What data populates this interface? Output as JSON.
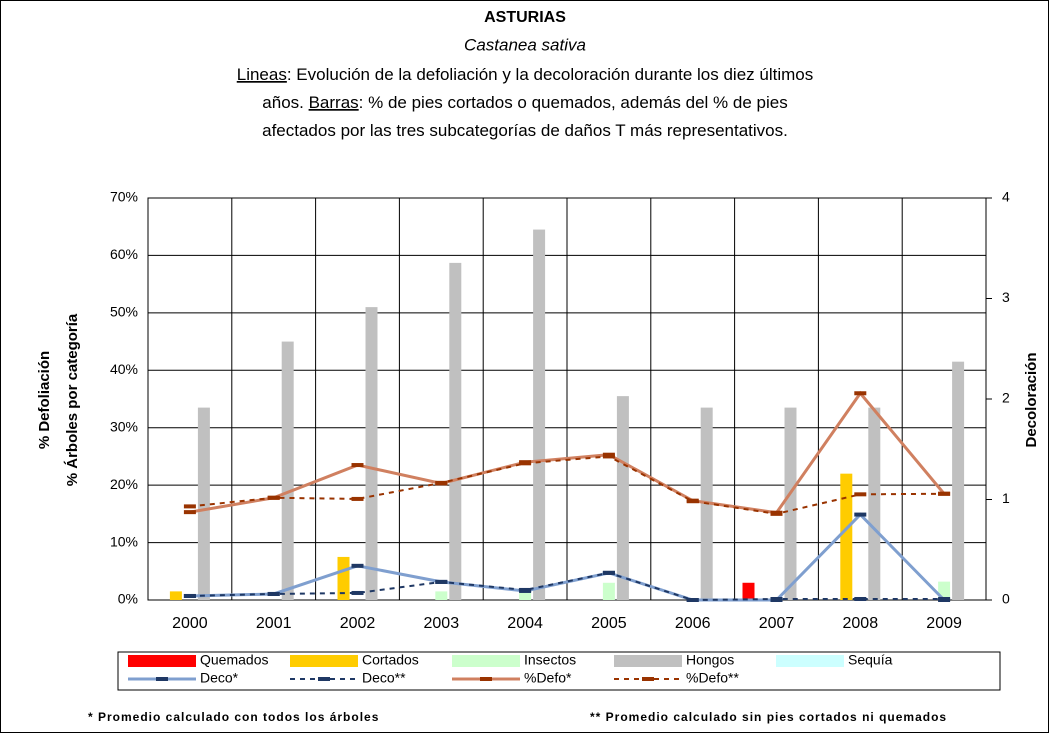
{
  "chart_data": {
    "type": "combo",
    "title": "ASTURIAS",
    "subtitle": "Castanea sativa",
    "description_lines": [
      [
        {
          "text": "Lineas",
          "underline": true
        },
        {
          "text": ": Evolución de la defoliación y la decoloración durante los diez últimos"
        }
      ],
      [
        {
          "text": "años. "
        },
        {
          "text": "Barras",
          "underline": true
        },
        {
          "text": ": % de pies cortados o quemados, además del % de pies"
        }
      ],
      [
        {
          "text": "afectados por las tres subcategorías de daños T más representativos."
        }
      ]
    ],
    "y_label_lines": [
      "% Defoliación",
      "% Árboles por categoría"
    ],
    "y2_label": "Decoloración",
    "categories": [
      "2000",
      "2001",
      "2002",
      "2003",
      "2004",
      "2005",
      "2006",
      "2007",
      "2008",
      "2009"
    ],
    "ylim": [
      0,
      70
    ],
    "yticks": [
      {
        "value": 0,
        "label": "0%"
      },
      {
        "value": 10,
        "label": "10%"
      },
      {
        "value": 20,
        "label": "20%"
      },
      {
        "value": 30,
        "label": "30%"
      },
      {
        "value": 40,
        "label": "40%"
      },
      {
        "value": 50,
        "label": "50%"
      },
      {
        "value": 60,
        "label": "60%"
      },
      {
        "value": 70,
        "label": "70%"
      }
    ],
    "y2lim": [
      0,
      4
    ],
    "y2ticks": [
      0,
      1,
      2,
      3,
      4
    ],
    "grid": true,
    "series": [
      {
        "name": "Quemados",
        "kind": "bar",
        "color": "#ff0000",
        "values": [
          0,
          0,
          0,
          0,
          0,
          0,
          0,
          3,
          0,
          0
        ]
      },
      {
        "name": "Cortados",
        "kind": "bar",
        "color": "#ffcc00",
        "values": [
          1.5,
          0,
          7.5,
          0,
          0,
          0,
          0,
          0,
          22,
          0
        ]
      },
      {
        "name": "Insectos",
        "kind": "bar",
        "color": "#ccffcc",
        "values": [
          0,
          0,
          0,
          1.5,
          2,
          3,
          0,
          0,
          0,
          3.2
        ]
      },
      {
        "name": "Hongos",
        "kind": "bar",
        "color": "#c0c0c0",
        "values": [
          33.5,
          45,
          51,
          58.7,
          64.5,
          35.5,
          33.5,
          33.5,
          33.5,
          41.5
        ]
      },
      {
        "name": "Sequía",
        "kind": "bar",
        "color": "#ccffff",
        "values": [
          0,
          0,
          0,
          0,
          0,
          0,
          0,
          0,
          0,
          0
        ]
      },
      {
        "name": "Deco*",
        "kind": "line",
        "axis": "y2",
        "color": "#7f9fcf",
        "marker_color": "#1f3864",
        "dash": false,
        "values": [
          0.04,
          0.06,
          0.34,
          0.18,
          0.09,
          0.27,
          0,
          0,
          0.85,
          0
        ]
      },
      {
        "name": "Deco**",
        "kind": "line",
        "axis": "y2",
        "color": "#1f3864",
        "marker_color": "#1f3864",
        "dash": true,
        "values": [
          0.04,
          0.06,
          0.07,
          0.18,
          0.1,
          0.27,
          0,
          0.01,
          0.01,
          0.01
        ]
      },
      {
        "name": "%Defo*",
        "kind": "line",
        "color": "#d08060",
        "marker_color": "#993300",
        "dash": false,
        "values": [
          15.3,
          17.8,
          23.5,
          20.3,
          24,
          25.3,
          17.3,
          15.2,
          36,
          18.5
        ]
      },
      {
        "name": "%Defo**",
        "kind": "line",
        "color": "#993300",
        "marker_color": "#993300",
        "dash": true,
        "values": [
          16.3,
          17.8,
          17.6,
          20.4,
          23.8,
          25,
          17.2,
          15,
          18.4,
          18.5
        ]
      }
    ],
    "footnotes": [
      "* Promedio calculado con todos los árboles",
      "** Promedio calculado sin pies cortados ni quemados"
    ]
  }
}
